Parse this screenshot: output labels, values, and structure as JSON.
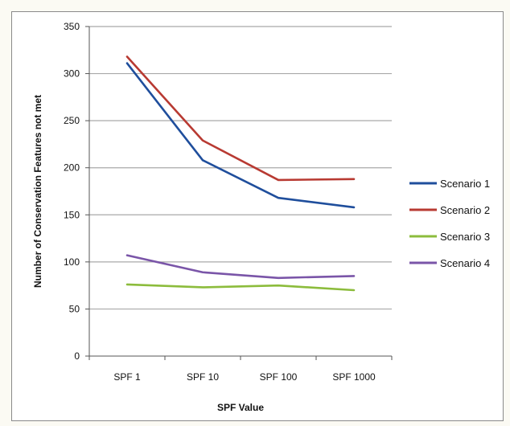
{
  "chart_data": {
    "type": "line",
    "title": "",
    "xlabel": "SPF Value",
    "ylabel": "Number of Conservation Features not met",
    "categories": [
      "SPF 1",
      "SPF 10",
      "SPF 100",
      "SPF 1000"
    ],
    "ylim": [
      0,
      350
    ],
    "yticks": [
      0,
      50,
      100,
      150,
      200,
      250,
      300,
      350
    ],
    "grid": true,
    "legend_position": "right",
    "series": [
      {
        "name": "Scenario 1",
        "color": "#1f4e9c",
        "values": [
          311,
          208,
          168,
          158
        ]
      },
      {
        "name": "Scenario 2",
        "color": "#b83a32",
        "values": [
          318,
          229,
          187,
          188
        ]
      },
      {
        "name": "Scenario 3",
        "color": "#8cbc3c",
        "values": [
          76,
          73,
          75,
          70
        ]
      },
      {
        "name": "Scenario 4",
        "color": "#7a55a8",
        "values": [
          107,
          89,
          83,
          85
        ]
      }
    ]
  }
}
